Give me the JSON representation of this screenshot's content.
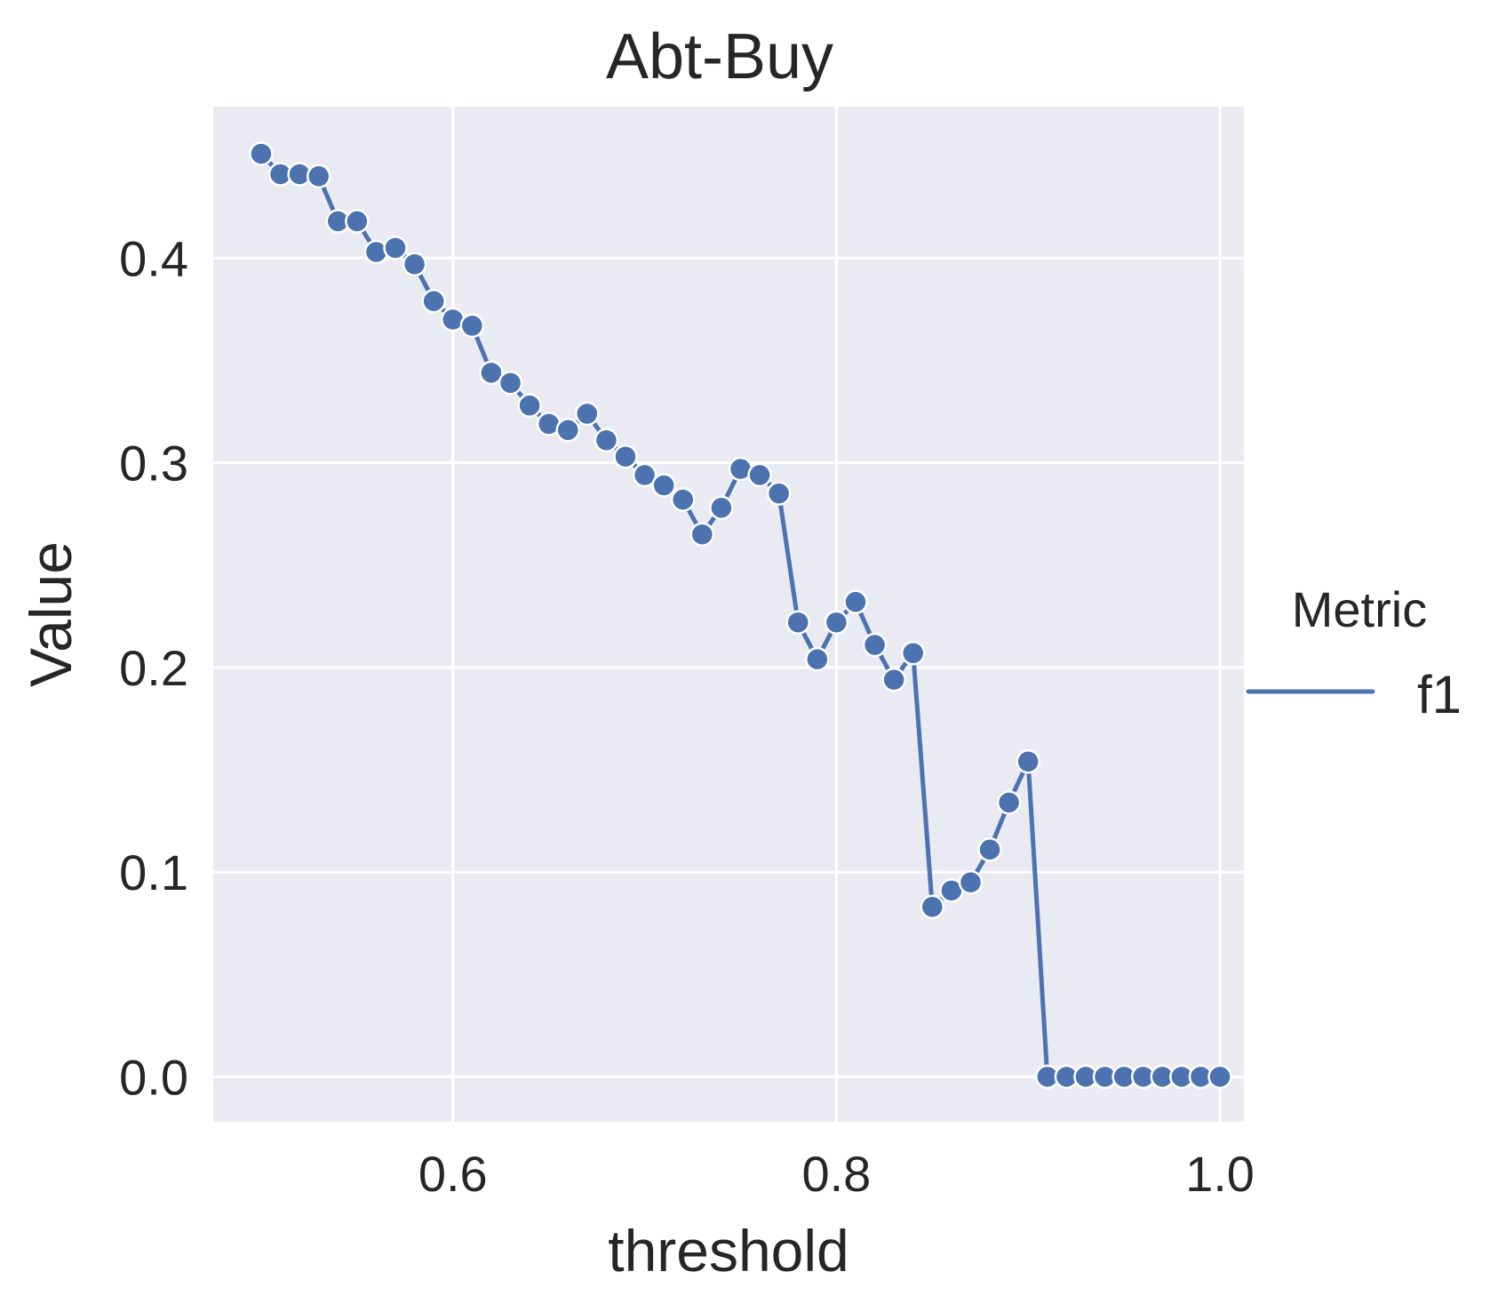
{
  "chart_data": {
    "type": "line",
    "title": "Abt-Buy",
    "xlabel": "threshold",
    "ylabel": "Value",
    "xlim": [
      0.475,
      1.0125
    ],
    "ylim": [
      -0.022,
      0.474
    ],
    "x_ticks": [
      0.6,
      0.8,
      1.0
    ],
    "x_tick_labels": [
      "0.6",
      "0.8",
      "1.0"
    ],
    "y_ticks": [
      0.0,
      0.1,
      0.2,
      0.3,
      0.4
    ],
    "y_tick_labels": [
      "0.0",
      "0.1",
      "0.2",
      "0.3",
      "0.4"
    ],
    "grid": true,
    "legend": {
      "title": "Metric",
      "placement": "right",
      "entries": [
        "f1"
      ]
    },
    "colors": {
      "background": "#eaeaf2",
      "grid": "#ffffff",
      "series": "#4c72b0"
    },
    "series": [
      {
        "name": "f1",
        "marker": "circle",
        "x": [
          0.5,
          0.51,
          0.52,
          0.53,
          0.54,
          0.55,
          0.56,
          0.57,
          0.58,
          0.59,
          0.6,
          0.61,
          0.62,
          0.63,
          0.64,
          0.65,
          0.66,
          0.67,
          0.68,
          0.69,
          0.7,
          0.71,
          0.72,
          0.73,
          0.74,
          0.75,
          0.76,
          0.77,
          0.78,
          0.79,
          0.8,
          0.81,
          0.82,
          0.83,
          0.84,
          0.85,
          0.86,
          0.87,
          0.88,
          0.89,
          0.9,
          0.91,
          0.92,
          0.93,
          0.94,
          0.95,
          0.96,
          0.97,
          0.98,
          0.99,
          1.0
        ],
        "y": [
          0.451,
          0.441,
          0.441,
          0.44,
          0.418,
          0.418,
          0.403,
          0.405,
          0.397,
          0.379,
          0.37,
          0.367,
          0.344,
          0.339,
          0.328,
          0.319,
          0.316,
          0.324,
          0.311,
          0.303,
          0.294,
          0.289,
          0.282,
          0.265,
          0.278,
          0.297,
          0.294,
          0.285,
          0.222,
          0.204,
          0.222,
          0.232,
          0.211,
          0.194,
          0.207,
          0.083,
          0.091,
          0.095,
          0.111,
          0.134,
          0.154,
          0.0,
          0.0,
          0.0,
          0.0,
          0.0,
          0.0,
          0.0,
          0.0,
          0.0,
          0.0
        ]
      }
    ]
  }
}
